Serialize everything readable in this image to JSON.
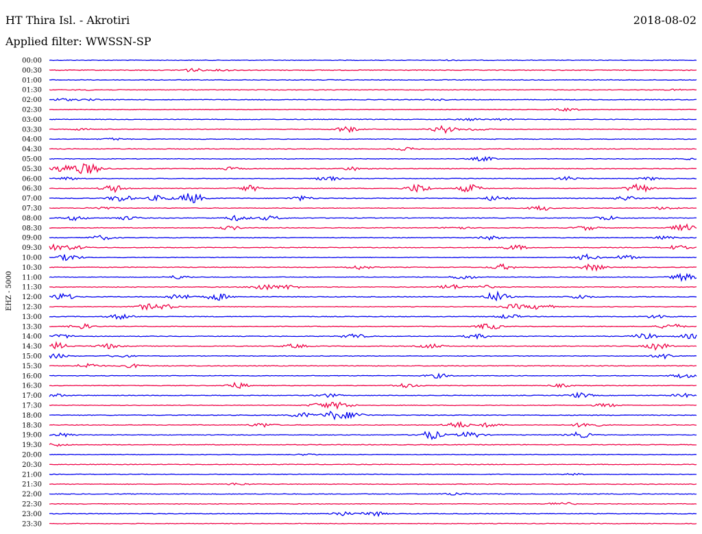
{
  "header": {
    "station": "HT Thira Isl. - Akrotiri",
    "date": "2018-08-02",
    "filter_label": "Applied filter:",
    "filter_value": "WWSSN-SP"
  },
  "chart_data": {
    "type": "line",
    "title": "HT Thira Isl. - Akrotiri",
    "date": "2018-08-02",
    "filter": "WWSSN-SP",
    "ylabel": "EHZ - 5000",
    "colors": [
      "#0000ee",
      "#ee0044"
    ],
    "grid": false,
    "rows": [
      {
        "label": "00:00",
        "bursts": [
          [
            0.62,
            0.4
          ]
        ]
      },
      {
        "label": "00:30",
        "bursts": [
          [
            0.22,
            2.5
          ],
          [
            0.27,
            1.2
          ]
        ]
      },
      {
        "label": "01:00",
        "bursts": []
      },
      {
        "label": "01:30",
        "bursts": [
          [
            0.06,
            0.5
          ],
          [
            0.97,
            0.7
          ]
        ]
      },
      {
        "label": "02:00",
        "bursts": [
          [
            0.02,
            1.6
          ],
          [
            0.06,
            1.0
          ],
          [
            0.6,
            0.8
          ]
        ]
      },
      {
        "label": "02:30",
        "bursts": [
          [
            0.8,
            1.8
          ]
        ]
      },
      {
        "label": "03:00",
        "bursts": [
          [
            0.65,
            1.5
          ],
          [
            0.7,
            1.2
          ]
        ]
      },
      {
        "label": "03:30",
        "bursts": [
          [
            0.05,
            1.2
          ],
          [
            0.46,
            4.0
          ],
          [
            0.61,
            5.0
          ],
          [
            0.66,
            2.0
          ]
        ]
      },
      {
        "label": "04:00",
        "bursts": [
          [
            0.1,
            1.5
          ]
        ]
      },
      {
        "label": "04:30",
        "bursts": [
          [
            0.55,
            2.0
          ]
        ]
      },
      {
        "label": "05:00",
        "bursts": [
          [
            0.67,
            3.0
          ],
          [
            0.99,
            1.2
          ]
        ]
      },
      {
        "label": "05:30",
        "bursts": [
          [
            0.02,
            4.5
          ],
          [
            0.05,
            6.0
          ],
          [
            0.07,
            4.0
          ],
          [
            0.28,
            2.0
          ],
          [
            0.47,
            2.5
          ]
        ]
      },
      {
        "label": "06:00",
        "bursts": [
          [
            0.03,
            2.0
          ],
          [
            0.43,
            3.0
          ],
          [
            0.8,
            2.5
          ],
          [
            0.93,
            2.0
          ]
        ]
      },
      {
        "label": "06:30",
        "bursts": [
          [
            0.1,
            5.0
          ],
          [
            0.31,
            4.0
          ],
          [
            0.57,
            6.0
          ],
          [
            0.65,
            5.5
          ],
          [
            0.91,
            7.0
          ]
        ]
      },
      {
        "label": "07:00",
        "bursts": [
          [
            0.11,
            5.0
          ],
          [
            0.17,
            4.0
          ],
          [
            0.22,
            8.0
          ],
          [
            0.39,
            3.0
          ],
          [
            0.69,
            3.5
          ],
          [
            0.89,
            3.0
          ]
        ]
      },
      {
        "label": "07:30",
        "bursts": [
          [
            0.08,
            2.0
          ],
          [
            0.76,
            3.5
          ],
          [
            0.95,
            2.0
          ]
        ]
      },
      {
        "label": "08:00",
        "bursts": [
          [
            0.04,
            3.0
          ],
          [
            0.12,
            2.5
          ],
          [
            0.29,
            3.5
          ],
          [
            0.34,
            3.0
          ],
          [
            0.86,
            3.0
          ]
        ]
      },
      {
        "label": "08:30",
        "bursts": [
          [
            0.28,
            2.5
          ],
          [
            0.63,
            2.0
          ],
          [
            0.83,
            3.0
          ],
          [
            0.98,
            5.0
          ]
        ]
      },
      {
        "label": "09:00",
        "bursts": [
          [
            0.08,
            3.0
          ],
          [
            0.68,
            2.5
          ],
          [
            0.95,
            2.0
          ]
        ]
      },
      {
        "label": "09:30",
        "bursts": [
          [
            0.01,
            4.0
          ],
          [
            0.04,
            2.5
          ],
          [
            0.72,
            3.5
          ],
          [
            0.97,
            3.0
          ]
        ]
      },
      {
        "label": "10:00",
        "bursts": [
          [
            0.03,
            4.5
          ],
          [
            0.83,
            4.0
          ],
          [
            0.89,
            3.0
          ]
        ]
      },
      {
        "label": "10:30",
        "bursts": [
          [
            0.48,
            3.0
          ],
          [
            0.7,
            4.0
          ],
          [
            0.84,
            4.5
          ]
        ]
      },
      {
        "label": "11:00",
        "bursts": [
          [
            0.2,
            2.5
          ],
          [
            0.64,
            3.0
          ],
          [
            0.98,
            5.0
          ]
        ]
      },
      {
        "label": "11:30",
        "bursts": [
          [
            0.33,
            4.5
          ],
          [
            0.37,
            3.0
          ],
          [
            0.62,
            3.5
          ],
          [
            0.67,
            2.5
          ]
        ]
      },
      {
        "label": "12:00",
        "bursts": [
          [
            0.02,
            5.0
          ],
          [
            0.2,
            4.5
          ],
          [
            0.26,
            5.0
          ],
          [
            0.69,
            7.0
          ],
          [
            0.82,
            3.0
          ]
        ]
      },
      {
        "label": "12:30",
        "bursts": [
          [
            0.15,
            3.5
          ],
          [
            0.18,
            3.0
          ],
          [
            0.72,
            3.5
          ],
          [
            0.76,
            4.0
          ]
        ]
      },
      {
        "label": "13:00",
        "bursts": [
          [
            0.11,
            3.5
          ],
          [
            0.71,
            3.0
          ],
          [
            0.94,
            2.5
          ]
        ]
      },
      {
        "label": "13:30",
        "bursts": [
          [
            0.05,
            3.5
          ],
          [
            0.68,
            4.5
          ],
          [
            0.96,
            4.0
          ]
        ]
      },
      {
        "label": "14:00",
        "bursts": [
          [
            0.02,
            2.5
          ],
          [
            0.47,
            3.5
          ],
          [
            0.66,
            3.0
          ],
          [
            0.92,
            4.0
          ],
          [
            0.99,
            3.0
          ]
        ]
      },
      {
        "label": "14:30",
        "bursts": [
          [
            0.01,
            5.0
          ],
          [
            0.09,
            3.5
          ],
          [
            0.38,
            3.0
          ],
          [
            0.59,
            3.0
          ],
          [
            0.94,
            5.0
          ]
        ]
      },
      {
        "label": "15:00",
        "bursts": [
          [
            0.01,
            3.0
          ],
          [
            0.11,
            2.0
          ],
          [
            0.95,
            3.5
          ]
        ]
      },
      {
        "label": "15:30",
        "bursts": [
          [
            0.06,
            3.5
          ],
          [
            0.13,
            2.5
          ]
        ]
      },
      {
        "label": "16:00",
        "bursts": [
          [
            0.6,
            3.0
          ],
          [
            0.98,
            3.0
          ]
        ]
      },
      {
        "label": "16:30",
        "bursts": [
          [
            0.29,
            4.0
          ],
          [
            0.55,
            3.0
          ],
          [
            0.79,
            2.0
          ]
        ]
      },
      {
        "label": "17:00",
        "bursts": [
          [
            0.01,
            2.0
          ],
          [
            0.43,
            2.5
          ],
          [
            0.82,
            3.5
          ],
          [
            0.98,
            2.5
          ]
        ]
      },
      {
        "label": "17:30",
        "bursts": [
          [
            0.42,
            3.5
          ],
          [
            0.45,
            4.5
          ],
          [
            0.86,
            2.5
          ]
        ]
      },
      {
        "label": "18:00",
        "bursts": [
          [
            0.39,
            3.5
          ],
          [
            0.44,
            6.0
          ],
          [
            0.47,
            4.0
          ]
        ]
      },
      {
        "label": "18:30",
        "bursts": [
          [
            0.33,
            3.0
          ],
          [
            0.63,
            4.5
          ],
          [
            0.68,
            3.0
          ],
          [
            0.83,
            4.5
          ]
        ]
      },
      {
        "label": "19:00",
        "bursts": [
          [
            0.02,
            2.5
          ],
          [
            0.59,
            6.0
          ],
          [
            0.65,
            4.5
          ],
          [
            0.82,
            4.0
          ]
        ]
      },
      {
        "label": "19:30",
        "bursts": [
          [
            0.01,
            2.0
          ]
        ]
      },
      {
        "label": "20:00",
        "bursts": [
          [
            0.4,
            1.0
          ]
        ]
      },
      {
        "label": "20:30",
        "bursts": []
      },
      {
        "label": "21:00",
        "bursts": [
          [
            0.81,
            1.0
          ]
        ]
      },
      {
        "label": "21:30",
        "bursts": [
          [
            0.29,
            1.5
          ]
        ]
      },
      {
        "label": "22:00",
        "bursts": [
          [
            0.63,
            2.0
          ]
        ]
      },
      {
        "label": "22:30",
        "bursts": [
          [
            0.79,
            2.5
          ]
        ]
      },
      {
        "label": "23:00",
        "bursts": [
          [
            0.45,
            3.0
          ],
          [
            0.5,
            3.5
          ]
        ]
      },
      {
        "label": "23:30",
        "bursts": []
      }
    ]
  }
}
